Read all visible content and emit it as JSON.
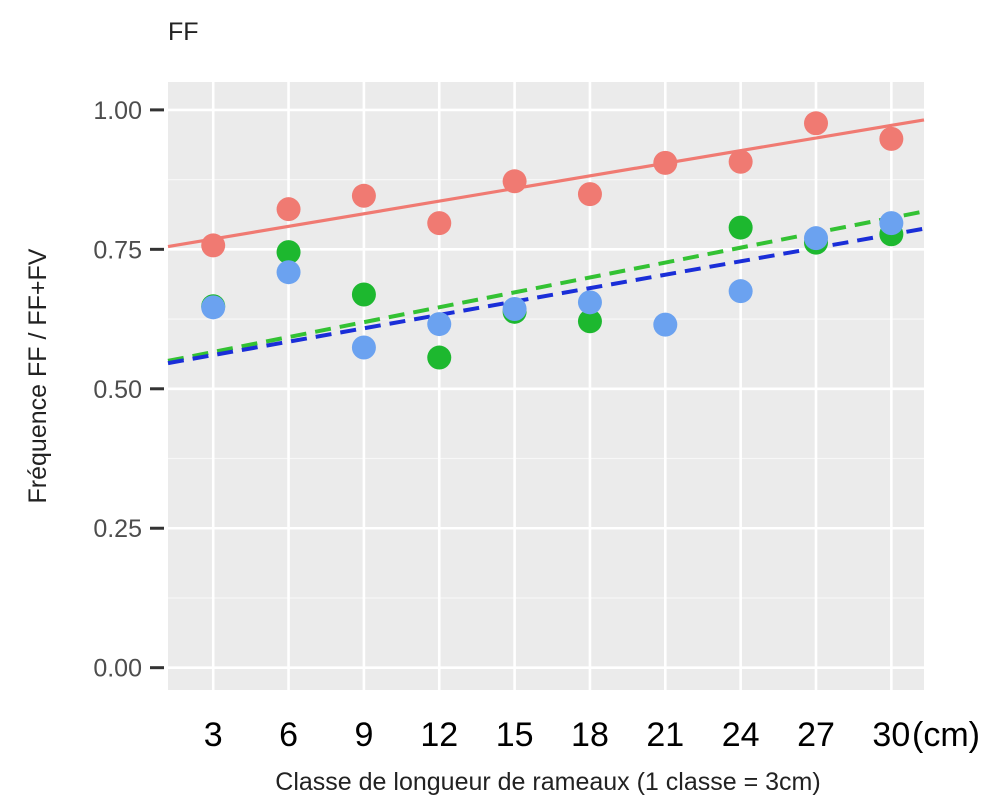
{
  "chart_data": {
    "type": "scatter",
    "title": "FF",
    "xlabel": "Classe de longueur de rameaux (1 classe = 3cm)",
    "ylabel": "Fréquence FF / FF+FV",
    "x_unit": "(cm)",
    "x": [
      3,
      6,
      9,
      12,
      15,
      18,
      21,
      24,
      27,
      30
    ],
    "xlim": [
      1.2,
      31.3
    ],
    "ylim": [
      -0.04,
      1.05
    ],
    "yticks": [
      "0.00",
      "0.25",
      "0.50",
      "0.75",
      "1.00"
    ],
    "ytick_values": [
      0,
      0.25,
      0.5,
      0.75,
      1.0
    ],
    "grid": true,
    "legend": "none",
    "series": [
      {
        "color": "#F07A72",
        "values": [
          0.757,
          0.822,
          0.846,
          0.797,
          0.872,
          0.849,
          0.905,
          0.907,
          0.976,
          0.948
        ],
        "fit": {
          "y_at_xmin": 0.755,
          "y_at_xmax": 0.982,
          "style": "solid"
        }
      },
      {
        "color": "#1DB82F",
        "values": [
          0.648,
          0.745,
          0.669,
          0.556,
          0.638,
          0.621,
          null,
          0.789,
          0.762,
          0.777
        ],
        "fit": {
          "y_at_xmin": 0.55,
          "y_at_xmax": 0.818,
          "style": "dashed",
          "line_color": "#33C233"
        }
      },
      {
        "color": "#6BA2F0",
        "values": [
          0.646,
          0.709,
          0.574,
          0.616,
          0.643,
          0.655,
          0.615,
          0.675,
          0.77,
          0.797
        ],
        "fit": {
          "y_at_xmin": 0.546,
          "y_at_xmax": 0.787,
          "style": "dashed",
          "line_color": "#1A2ED8"
        }
      }
    ]
  }
}
